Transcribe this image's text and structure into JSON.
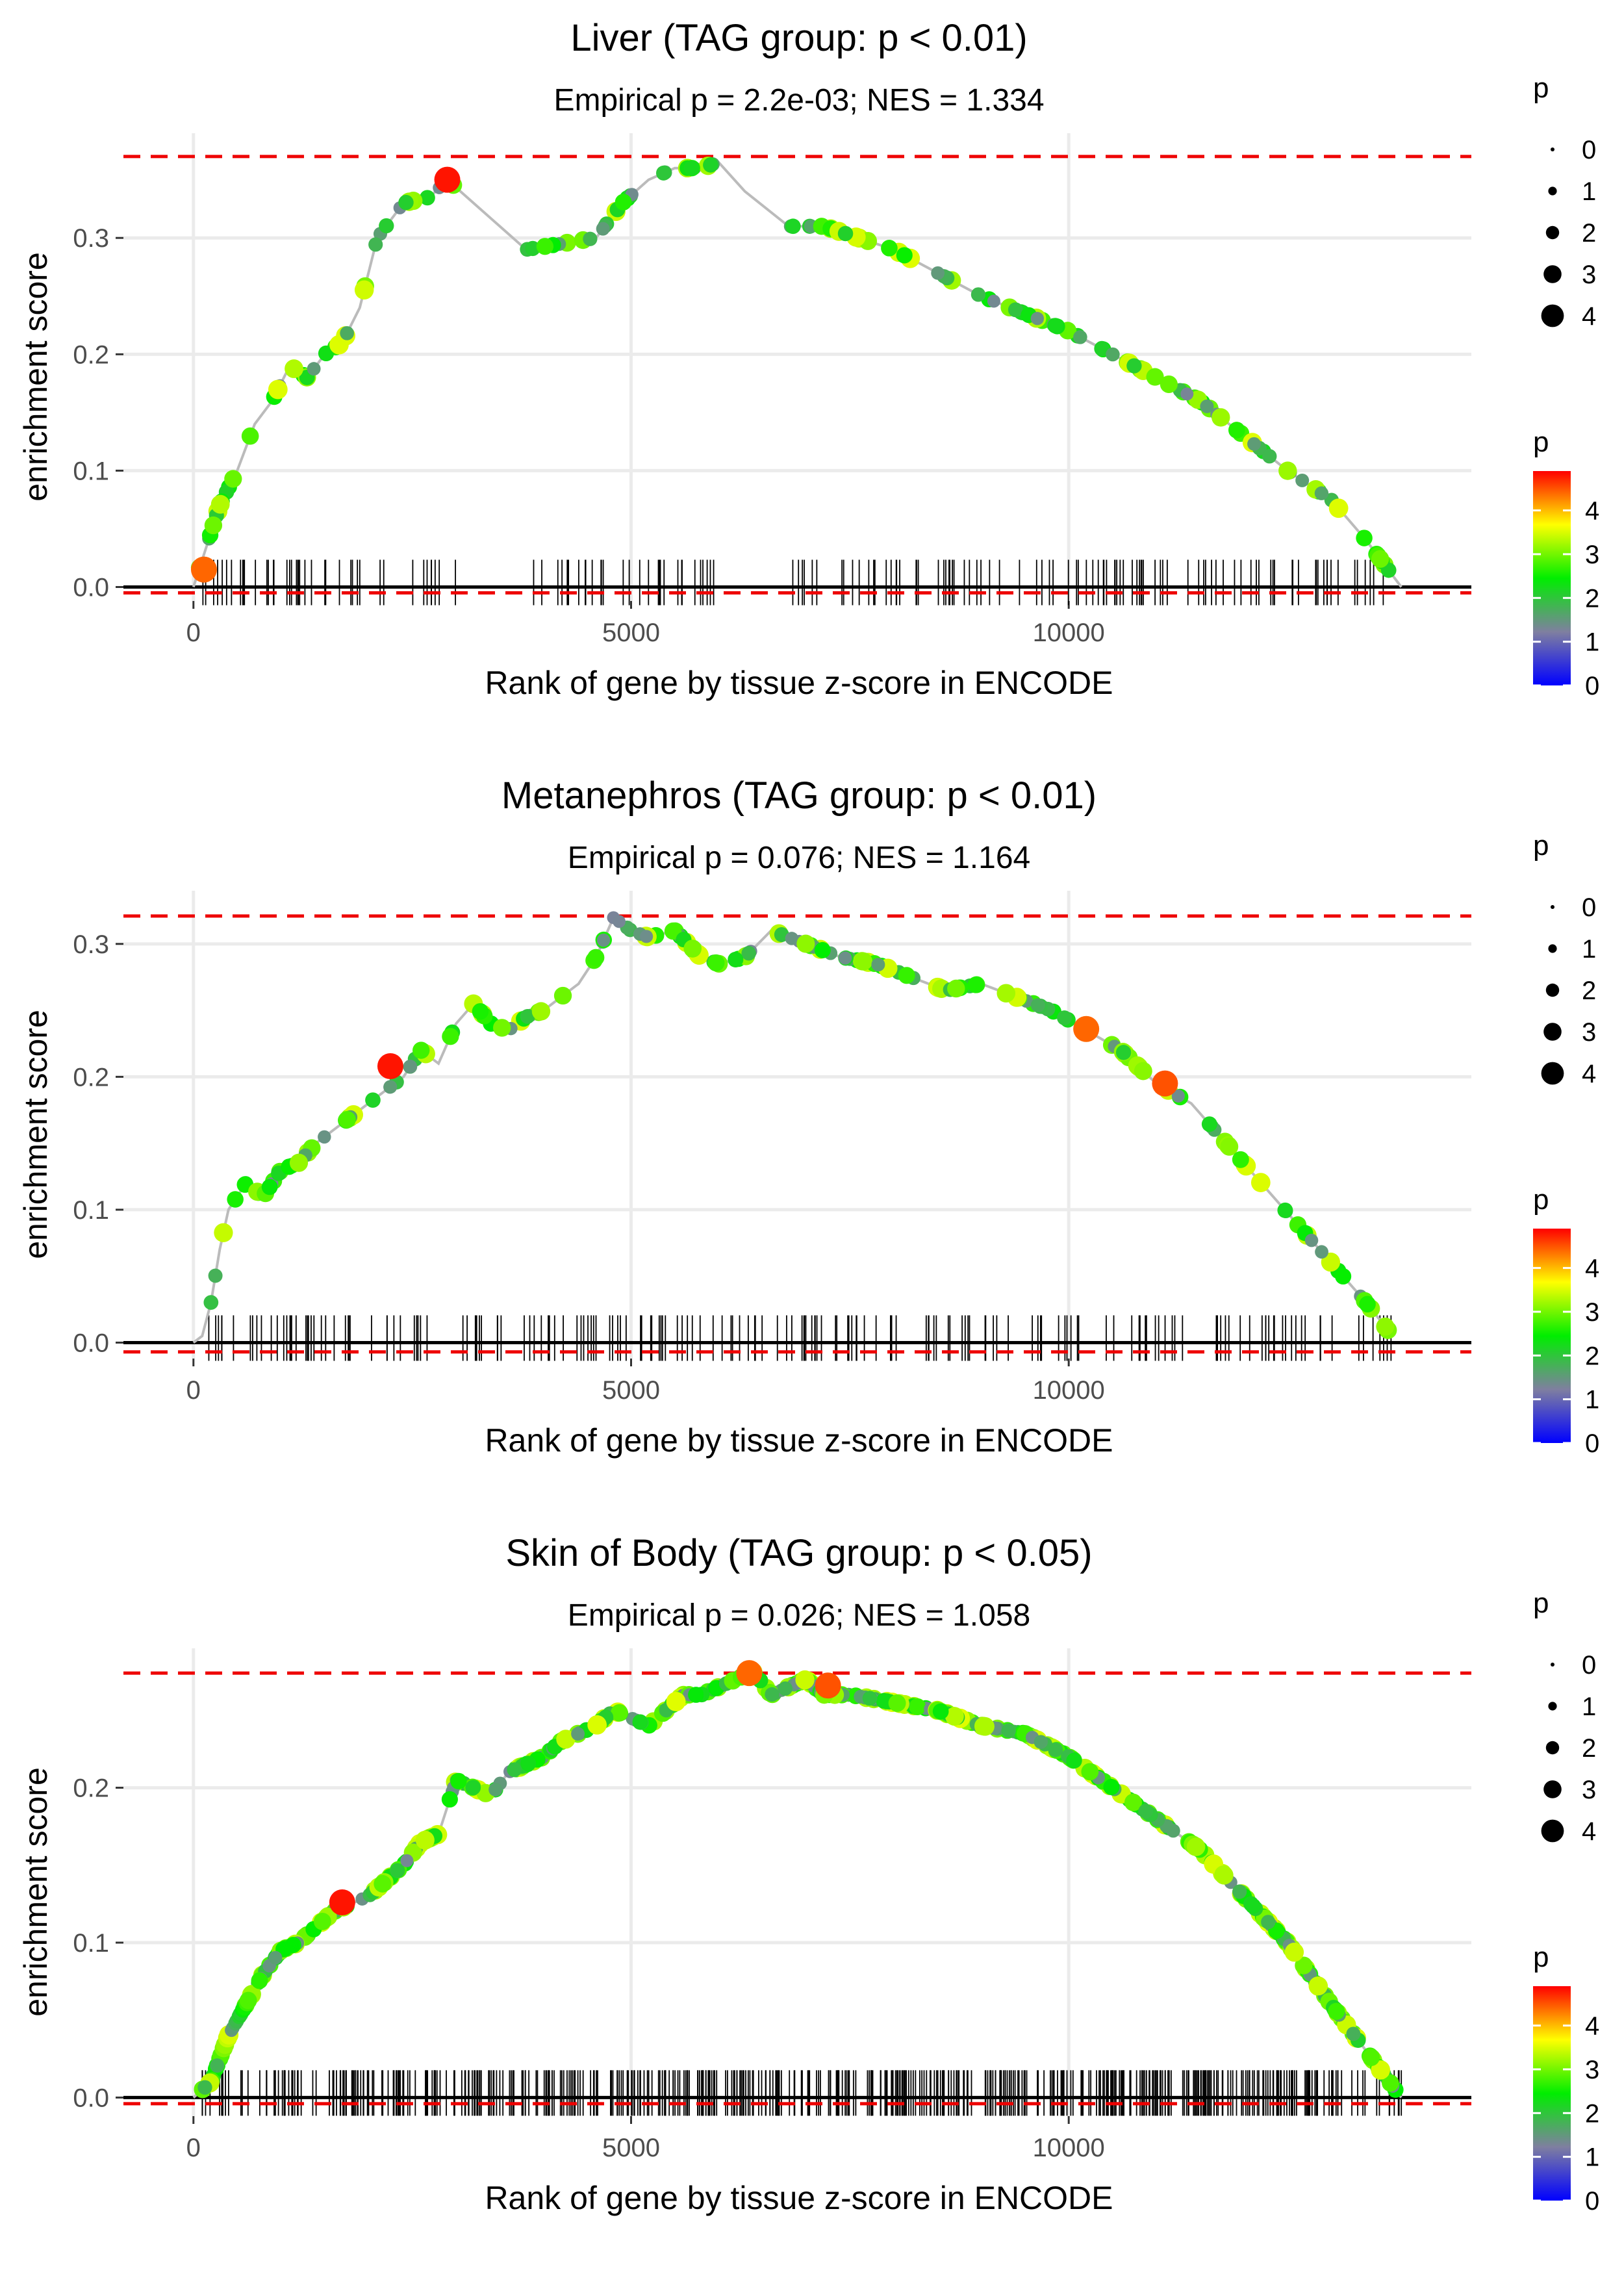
{
  "charts": [
    {
      "type": "line",
      "title": "Liver (TAG group: p < 0.01)",
      "subtitle": "Empirical p = 2.2e-03; NES = 1.334",
      "xlabel": "Rank of gene by tissue z-score in ENCODE",
      "ylabel": "enrichment score",
      "xlim": [
        -800,
        14600
      ],
      "ylim": [
        -0.012,
        0.39
      ],
      "xticks": [
        0,
        5000,
        10000
      ],
      "xtick_labels": [
        "0",
        "5000",
        "10000"
      ],
      "yticks": [
        0.0,
        0.1,
        0.2,
        0.3
      ],
      "ytick_labels": [
        "0.0",
        "0.1",
        "0.2",
        "0.3"
      ],
      "es_max": 0.37,
      "es_min": -0.005,
      "curve_x": [
        0,
        150,
        300,
        500,
        700,
        900,
        1100,
        1300,
        1500,
        1700,
        1900,
        2100,
        2400,
        2700,
        2900,
        3200,
        3500,
        3800,
        4200,
        4600,
        4900,
        5200,
        5500,
        5800,
        6000,
        6300,
        6800,
        7200,
        7600,
        8000,
        8500,
        9000,
        9500,
        10000,
        10500,
        11000,
        11500,
        12000,
        12500,
        13000,
        13400,
        13800
      ],
      "curve_y": [
        0.0,
        0.035,
        0.07,
        0.1,
        0.14,
        0.16,
        0.19,
        0.18,
        0.2,
        0.21,
        0.24,
        0.3,
        0.33,
        0.335,
        0.35,
        0.33,
        0.31,
        0.29,
        0.295,
        0.3,
        0.33,
        0.35,
        0.36,
        0.36,
        0.365,
        0.34,
        0.31,
        0.31,
        0.3,
        0.29,
        0.27,
        0.25,
        0.235,
        0.22,
        0.2,
        0.18,
        0.16,
        0.13,
        0.1,
        0.075,
        0.04,
        0.0
      ],
      "highlights": [
        {
          "x": 2900,
          "y": 0.35,
          "p": 4.9
        },
        {
          "x": 120,
          "y": 0.015,
          "p": 4.5
        }
      ],
      "rug_regions": [
        [
          20,
          3000
        ],
        [
          3800,
          6000
        ],
        [
          6800,
          8300
        ],
        [
          8500,
          13700
        ]
      ],
      "rug_count": 170,
      "size_legend": {
        "title": "p",
        "labels": [
          "0",
          "1",
          "2",
          "3",
          "4"
        ]
      },
      "color_legend": {
        "title": "p",
        "labels": [
          "4",
          "3",
          "2",
          "1",
          "0"
        ]
      }
    },
    {
      "type": "line",
      "title": "Metanephros (TAG group: p < 0.01)",
      "subtitle": "Empirical p = 0.076; NES = 1.164",
      "xlabel": "Rank of gene by tissue z-score in ENCODE",
      "ylabel": "enrichment score",
      "xlim": [
        -800,
        14600
      ],
      "ylim": [
        -0.012,
        0.34
      ],
      "xticks": [
        0,
        5000,
        10000
      ],
      "xtick_labels": [
        "0",
        "5000",
        "10000"
      ],
      "yticks": [
        0.0,
        0.1,
        0.2,
        0.3
      ],
      "ytick_labels": [
        "0.0",
        "0.1",
        "0.2",
        "0.3"
      ],
      "es_max": 0.321,
      "es_min": -0.007,
      "curve_x": [
        0,
        100,
        200,
        300,
        400,
        500,
        600,
        800,
        1000,
        1200,
        1400,
        1600,
        1800,
        2000,
        2200,
        2400,
        2600,
        2800,
        3000,
        3200,
        3400,
        3600,
        3800,
        4000,
        4200,
        4400,
        4600,
        4800,
        5000,
        5200,
        5500,
        5800,
        6000,
        6300,
        6600,
        7000,
        7400,
        7800,
        8200,
        8600,
        9000,
        9400,
        9800,
        10200,
        10600,
        11000,
        11400,
        11800,
        12200,
        12600,
        13000,
        13400,
        13700
      ],
      "curve_y": [
        0.0,
        0.005,
        0.03,
        0.07,
        0.1,
        0.11,
        0.12,
        0.11,
        0.13,
        0.135,
        0.15,
        0.16,
        0.17,
        0.18,
        0.19,
        0.2,
        0.22,
        0.21,
        0.24,
        0.255,
        0.24,
        0.235,
        0.245,
        0.25,
        0.26,
        0.27,
        0.29,
        0.32,
        0.31,
        0.305,
        0.31,
        0.29,
        0.285,
        0.29,
        0.31,
        0.3,
        0.29,
        0.285,
        0.275,
        0.265,
        0.27,
        0.26,
        0.25,
        0.235,
        0.22,
        0.195,
        0.18,
        0.15,
        0.12,
        0.09,
        0.06,
        0.03,
        0.005
      ],
      "highlights": [
        {
          "x": 2250,
          "y": 0.208,
          "p": 4.9
        },
        {
          "x": 10200,
          "y": 0.236,
          "p": 4.5
        },
        {
          "x": 11100,
          "y": 0.195,
          "p": 4.6
        }
      ],
      "rug_regions": [
        [
          150,
          2900
        ],
        [
          2900,
          6700
        ],
        [
          6700,
          10200
        ],
        [
          10400,
          11300
        ],
        [
          11600,
          13700
        ]
      ],
      "rug_count": 190,
      "size_legend": {
        "title": "p",
        "labels": [
          "0",
          "1",
          "2",
          "3",
          "4"
        ]
      },
      "color_legend": {
        "title": "p",
        "labels": [
          "4",
          "3",
          "2",
          "1",
          "0"
        ]
      }
    },
    {
      "type": "line",
      "title": "Skin of Body (TAG group: p < 0.05)",
      "subtitle": "Empirical p = 0.026; NES = 1.058",
      "xlabel": "Rank of gene by tissue z-score in ENCODE",
      "ylabel": "enrichment score",
      "xlim": [
        -800,
        14600
      ],
      "ylim": [
        -0.012,
        0.29
      ],
      "xticks": [
        0,
        5000,
        10000
      ],
      "xtick_labels": [
        "0",
        "5000",
        "10000"
      ],
      "yticks": [
        0.0,
        0.1,
        0.2
      ],
      "ytick_labels": [
        "0.0",
        "0.1",
        "0.2"
      ],
      "es_max": 0.274,
      "es_min": -0.004,
      "curve_x": [
        0,
        200,
        400,
        600,
        800,
        1000,
        1200,
        1400,
        1600,
        1800,
        2000,
        2200,
        2400,
        2600,
        2800,
        3000,
        3200,
        3400,
        3600,
        3800,
        4000,
        4200,
        4400,
        4600,
        4800,
        5000,
        5200,
        5400,
        5600,
        5800,
        6000,
        6200,
        6400,
        6600,
        6800,
        7000,
        7200,
        7500,
        8000,
        8500,
        9000,
        9500,
        10000,
        10500,
        11000,
        11500,
        12000,
        12500,
        13000,
        13400,
        13800
      ],
      "curve_y": [
        0.0,
        0.01,
        0.04,
        0.06,
        0.08,
        0.095,
        0.1,
        0.11,
        0.12,
        0.125,
        0.13,
        0.14,
        0.15,
        0.165,
        0.17,
        0.205,
        0.2,
        0.195,
        0.21,
        0.215,
        0.22,
        0.23,
        0.235,
        0.24,
        0.25,
        0.245,
        0.24,
        0.25,
        0.26,
        0.26,
        0.265,
        0.27,
        0.275,
        0.26,
        0.265,
        0.27,
        0.26,
        0.26,
        0.255,
        0.25,
        0.24,
        0.235,
        0.22,
        0.2,
        0.18,
        0.16,
        0.13,
        0.1,
        0.06,
        0.03,
        0.0
      ],
      "highlights": [
        {
          "x": 1700,
          "y": 0.126,
          "p": 4.9
        },
        {
          "x": 6350,
          "y": 0.274,
          "p": 4.5
        },
        {
          "x": 7250,
          "y": 0.266,
          "p": 4.6
        }
      ],
      "rug_regions": [
        [
          100,
          13800
        ]
      ],
      "rug_count": 520,
      "size_legend": {
        "title": "p",
        "labels": [
          "0",
          "1",
          "2",
          "3",
          "4"
        ]
      },
      "color_legend": {
        "title": "p",
        "labels": [
          "4",
          "3",
          "2",
          "1",
          "0"
        ]
      }
    }
  ],
  "colors": {
    "reference_line": "#ee0000",
    "curve": "#bbbbbb",
    "gridline": "#ebebeb",
    "rug": "#000000",
    "gradient": [
      "#ff0000",
      "#ffff00",
      "#00ee00",
      "#7f7fa0",
      "#0000ff"
    ]
  }
}
